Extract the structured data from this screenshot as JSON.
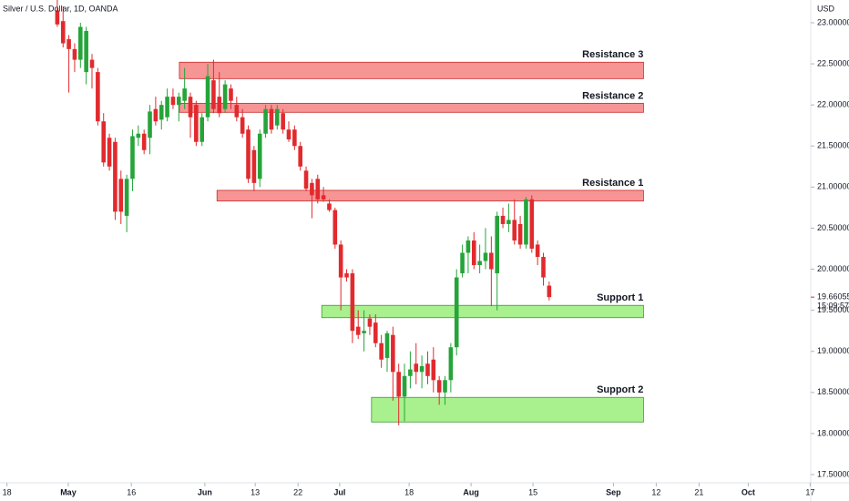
{
  "chart_data": {
    "type": "candlestick",
    "title": "Silver / U.S. Dollar, 1D, OANDA",
    "currency": "USD",
    "up_color": "#26a43a",
    "down_color": "#e12a2e",
    "ylim": [
      17.5,
      23.0
    ],
    "yticks": [
      {
        "value": 17.5,
        "label": "17.50000"
      },
      {
        "value": 18.0,
        "label": "18.00000"
      },
      {
        "value": 18.5,
        "label": "18.50000"
      },
      {
        "value": 19.0,
        "label": "19.00000"
      },
      {
        "value": 19.5,
        "label": "19.50000"
      },
      {
        "value": 20.0,
        "label": "20.00000"
      },
      {
        "value": 20.5,
        "label": "20.50000"
      },
      {
        "value": 21.0,
        "label": "21.00000"
      },
      {
        "value": 21.5,
        "label": "21.50000"
      },
      {
        "value": 22.0,
        "label": "22.00000"
      },
      {
        "value": 22.5,
        "label": "22.50000"
      },
      {
        "value": 23.0,
        "label": "23.00000"
      }
    ],
    "xlim": [
      -9.9,
      130.2
    ],
    "xticks": [
      {
        "value": -8.7,
        "label": "18"
      },
      {
        "value": 1.9,
        "label": "May"
      },
      {
        "value": 12.8,
        "label": "16"
      },
      {
        "value": 25.5,
        "label": "Jun"
      },
      {
        "value": 34.2,
        "label": "13"
      },
      {
        "value": 41.6,
        "label": "22"
      },
      {
        "value": 48.8,
        "label": "Jul"
      },
      {
        "value": 60.8,
        "label": "18"
      },
      {
        "value": 71.5,
        "label": "Aug"
      },
      {
        "value": 82.2,
        "label": "15"
      },
      {
        "value": 96.1,
        "label": "Sep"
      },
      {
        "value": 103.5,
        "label": "12"
      },
      {
        "value": 110.9,
        "label": "21"
      },
      {
        "value": 119.4,
        "label": "Oct"
      },
      {
        "value": 130.1,
        "label": "17"
      }
    ],
    "open": [
      23.15,
      23.02,
      22.8,
      22.68,
      22.55,
      22.4,
      22.55,
      22.4,
      21.8,
      21.6,
      21.55,
      21.1,
      20.65,
      21.1,
      21.6,
      21.65,
      21.6,
      21.95,
      21.82,
      21.85,
      22.1,
      22.0,
      22.05,
      22.1,
      22.0,
      21.55,
      21.85,
      22.3,
      22.1,
      21.95,
      22.2,
      22.0,
      21.85,
      21.7,
      21.45,
      21.1,
      21.65,
      21.95,
      21.75,
      21.9,
      21.7,
      21.7,
      21.5,
      21.2,
      21.05,
      21.1,
      20.9,
      20.8,
      20.72,
      20.3,
      19.95,
      19.95,
      19.3,
      19.22,
      19.4,
      19.35,
      19.1,
      18.92,
      19.2,
      18.75,
      18.45,
      18.7,
      18.85,
      18.75,
      18.85,
      18.9,
      18.65,
      18.5,
      18.65,
      19.05,
      19.95,
      20.2,
      20.35,
      20.05,
      20.1,
      20.2,
      19.95,
      20.65,
      20.55,
      20.6,
      20.55,
      20.3,
      20.85,
      20.3,
      20.15,
      19.8
    ],
    "high": [
      23.3,
      23.2,
      22.85,
      22.75,
      23.0,
      22.95,
      22.62,
      22.45,
      21.9,
      21.65,
      21.6,
      21.2,
      21.15,
      21.7,
      21.75,
      21.7,
      22.0,
      22.1,
      22.05,
      22.2,
      22.2,
      22.15,
      22.45,
      22.15,
      22.05,
      21.9,
      22.5,
      22.55,
      22.4,
      22.3,
      22.25,
      22.1,
      21.95,
      21.75,
      21.5,
      21.7,
      22.0,
      22.0,
      22.0,
      21.95,
      21.8,
      21.75,
      21.55,
      21.25,
      21.1,
      21.15,
      21.0,
      20.85,
      20.75,
      20.35,
      20.0,
      20.0,
      19.5,
      19.5,
      19.45,
      19.45,
      19.2,
      19.25,
      19.3,
      18.85,
      18.85,
      19.0,
      19.1,
      18.95,
      19.0,
      19.05,
      18.7,
      18.7,
      19.1,
      20.0,
      20.3,
      20.4,
      20.45,
      20.3,
      20.5,
      20.4,
      20.7,
      20.75,
      20.8,
      20.85,
      20.65,
      20.88,
      20.9,
      20.35,
      20.2,
      19.85
    ],
    "low": [
      22.95,
      22.7,
      22.15,
      22.4,
      22.45,
      22.25,
      22.2,
      21.75,
      21.25,
      21.2,
      20.6,
      20.55,
      20.45,
      20.95,
      21.5,
      21.4,
      21.4,
      21.75,
      21.7,
      21.8,
      21.95,
      21.8,
      21.95,
      21.6,
      21.5,
      21.5,
      21.8,
      21.9,
      21.85,
      21.9,
      21.95,
      21.8,
      21.6,
      21.05,
      20.95,
      21.0,
      21.6,
      21.65,
      21.7,
      21.65,
      21.55,
      21.45,
      21.2,
      20.95,
      20.62,
      20.8,
      20.82,
      20.7,
      20.25,
      19.5,
      19.85,
      19.1,
      19.15,
      19.0,
      19.2,
      19.05,
      18.8,
      18.75,
      18.4,
      18.1,
      18.15,
      18.55,
      18.6,
      18.55,
      18.6,
      18.5,
      18.35,
      18.35,
      18.5,
      18.95,
      19.9,
      19.95,
      20.0,
      19.95,
      20.0,
      19.55,
      19.5,
      20.5,
      20.45,
      20.3,
      20.25,
      20.25,
      20.2,
      20.05,
      19.8,
      19.62
    ],
    "close": [
      22.98,
      22.75,
      22.68,
      22.55,
      22.95,
      22.9,
      22.45,
      21.8,
      21.3,
      21.25,
      20.7,
      20.7,
      21.1,
      21.62,
      21.65,
      21.45,
      21.92,
      21.8,
      22.0,
      22.1,
      22.0,
      22.1,
      22.2,
      21.85,
      21.55,
      21.85,
      22.35,
      21.95,
      21.9,
      22.25,
      22.05,
      21.85,
      21.65,
      21.1,
      21.05,
      21.65,
      21.95,
      21.7,
      21.95,
      21.7,
      21.58,
      21.5,
      21.25,
      20.98,
      20.9,
      20.85,
      20.85,
      20.72,
      20.3,
      19.9,
      19.9,
      19.25,
      19.2,
      19.25,
      19.3,
      19.1,
      18.9,
      19.22,
      18.75,
      18.45,
      18.7,
      18.78,
      18.75,
      18.82,
      18.7,
      18.65,
      18.5,
      18.65,
      19.05,
      19.9,
      20.2,
      20.35,
      20.05,
      20.1,
      20.2,
      20.0,
      20.65,
      20.55,
      20.6,
      20.35,
      20.3,
      20.85,
      20.25,
      20.15,
      19.9,
      19.66055
    ],
    "last_price_label": "19.66055",
    "countdown": "15:09:57",
    "zones": [
      {
        "label": "Resistance 3",
        "kind": "resistance",
        "low": 22.32,
        "high": 22.52,
        "start": 21.1,
        "end": 101.3
      },
      {
        "label": "Resistance 2",
        "kind": "resistance",
        "low": 21.91,
        "high": 22.02,
        "start": 21.1,
        "end": 101.3
      },
      {
        "label": "Resistance 1",
        "kind": "resistance",
        "low": 20.83,
        "high": 20.96,
        "start": 27.6,
        "end": 101.3
      },
      {
        "label": "Support 1",
        "kind": "support",
        "low": 19.41,
        "high": 19.56,
        "start": 45.7,
        "end": 101.3
      },
      {
        "label": "Support 2",
        "kind": "support",
        "low": 18.14,
        "high": 18.44,
        "start": 54.3,
        "end": 101.3
      }
    ],
    "zone_colors": {
      "resistance": [
        "#f79595",
        "#c92a2a"
      ],
      "support": [
        "#a9f08e",
        "#3c9a2c"
      ]
    }
  }
}
